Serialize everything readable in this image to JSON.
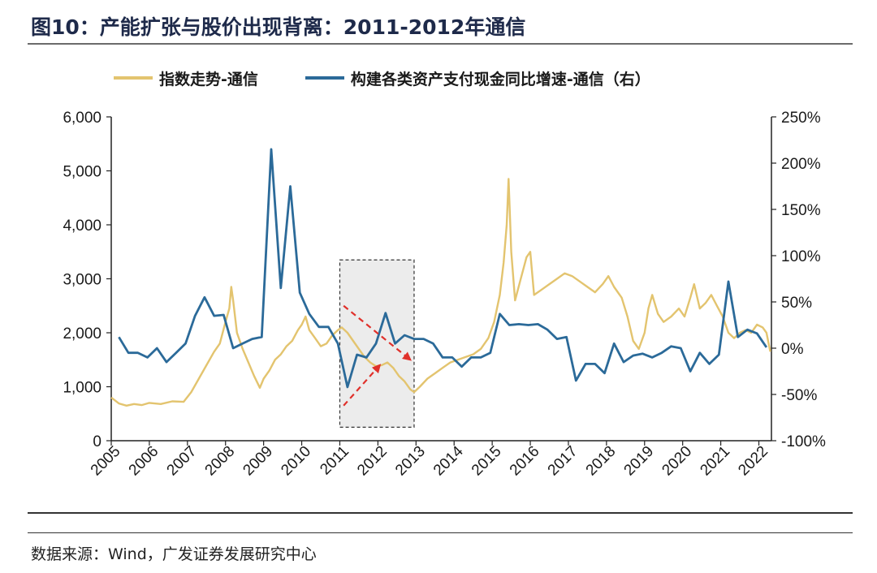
{
  "header": {
    "title": "图10：产能扩张与股价出现背离：2011-2012年通信"
  },
  "footer": {
    "source": "数据来源：Wind，广发证券发展研究中心"
  },
  "colors": {
    "index_line": "#e3c46f",
    "capex_line": "#2b6a99",
    "highlight_fill": "#ececec",
    "arrow": "#e0302a"
  },
  "chart_data": {
    "type": "line",
    "title": "",
    "legend_position": "top",
    "grid": false,
    "x": {
      "ticks": [
        "2005",
        "2006",
        "2007",
        "2008",
        "2009",
        "2010",
        "2011",
        "2012",
        "2013",
        "2014",
        "2015",
        "2016",
        "2017",
        "2018",
        "2019",
        "2020",
        "2021",
        "2022"
      ],
      "range": [
        2005.0,
        2022.33
      ]
    },
    "y_left": {
      "ticks": [
        "0",
        "1,000",
        "2,000",
        "3,000",
        "4,000",
        "5,000",
        "6,000"
      ],
      "range": [
        0,
        6000
      ]
    },
    "y_right": {
      "ticks": [
        "-100%",
        "-50%",
        "0%",
        "50%",
        "100%",
        "150%",
        "200%",
        "250%"
      ],
      "range": [
        -100,
        250
      ],
      "unit": "%"
    },
    "series": [
      {
        "name": "指数走势-通信",
        "axis": "left",
        "points": [
          [
            2005.0,
            800
          ],
          [
            2005.2,
            690
          ],
          [
            2005.4,
            650
          ],
          [
            2005.6,
            680
          ],
          [
            2005.8,
            660
          ],
          [
            2006.0,
            700
          ],
          [
            2006.3,
            680
          ],
          [
            2006.6,
            730
          ],
          [
            2006.9,
            720
          ],
          [
            2007.1,
            900
          ],
          [
            2007.3,
            1150
          ],
          [
            2007.5,
            1400
          ],
          [
            2007.7,
            1650
          ],
          [
            2007.85,
            1800
          ],
          [
            2008.0,
            2200
          ],
          [
            2008.1,
            2450
          ],
          [
            2008.15,
            2850
          ],
          [
            2008.2,
            2600
          ],
          [
            2008.3,
            2000
          ],
          [
            2008.45,
            1700
          ],
          [
            2008.6,
            1450
          ],
          [
            2008.75,
            1200
          ],
          [
            2008.9,
            980
          ],
          [
            2009.0,
            1150
          ],
          [
            2009.15,
            1300
          ],
          [
            2009.3,
            1500
          ],
          [
            2009.45,
            1600
          ],
          [
            2009.6,
            1750
          ],
          [
            2009.75,
            1850
          ],
          [
            2009.9,
            2050
          ],
          [
            2010.0,
            2150
          ],
          [
            2010.1,
            2300
          ],
          [
            2010.2,
            2050
          ],
          [
            2010.35,
            1900
          ],
          [
            2010.5,
            1750
          ],
          [
            2010.65,
            1800
          ],
          [
            2010.8,
            1950
          ],
          [
            2010.95,
            2050
          ],
          [
            2011.05,
            2100
          ],
          [
            2011.2,
            2000
          ],
          [
            2011.35,
            1850
          ],
          [
            2011.5,
            1700
          ],
          [
            2011.65,
            1550
          ],
          [
            2011.8,
            1450
          ],
          [
            2011.95,
            1380
          ],
          [
            2012.1,
            1400
          ],
          [
            2012.25,
            1450
          ],
          [
            2012.4,
            1350
          ],
          [
            2012.55,
            1200
          ],
          [
            2012.7,
            1100
          ],
          [
            2012.85,
            950
          ],
          [
            2012.95,
            900
          ],
          [
            2013.1,
            1000
          ],
          [
            2013.3,
            1150
          ],
          [
            2013.5,
            1250
          ],
          [
            2013.7,
            1350
          ],
          [
            2013.9,
            1450
          ],
          [
            2014.1,
            1500
          ],
          [
            2014.3,
            1550
          ],
          [
            2014.5,
            1600
          ],
          [
            2014.7,
            1700
          ],
          [
            2014.9,
            1900
          ],
          [
            2015.05,
            2200
          ],
          [
            2015.2,
            2700
          ],
          [
            2015.3,
            3300
          ],
          [
            2015.38,
            4000
          ],
          [
            2015.43,
            4850
          ],
          [
            2015.5,
            3500
          ],
          [
            2015.6,
            2600
          ],
          [
            2015.75,
            3000
          ],
          [
            2015.9,
            3400
          ],
          [
            2016.0,
            3500
          ],
          [
            2016.1,
            2700
          ],
          [
            2016.3,
            2800
          ],
          [
            2016.5,
            2900
          ],
          [
            2016.7,
            3000
          ],
          [
            2016.9,
            3100
          ],
          [
            2017.1,
            3050
          ],
          [
            2017.3,
            2950
          ],
          [
            2017.5,
            2850
          ],
          [
            2017.7,
            2750
          ],
          [
            2017.9,
            2900
          ],
          [
            2018.05,
            3050
          ],
          [
            2018.2,
            2850
          ],
          [
            2018.4,
            2650
          ],
          [
            2018.55,
            2300
          ],
          [
            2018.7,
            1850
          ],
          [
            2018.85,
            1700
          ],
          [
            2019.0,
            2000
          ],
          [
            2019.1,
            2450
          ],
          [
            2019.2,
            2700
          ],
          [
            2019.35,
            2350
          ],
          [
            2019.5,
            2200
          ],
          [
            2019.7,
            2300
          ],
          [
            2019.9,
            2450
          ],
          [
            2020.05,
            2300
          ],
          [
            2020.2,
            2650
          ],
          [
            2020.3,
            2900
          ],
          [
            2020.45,
            2450
          ],
          [
            2020.6,
            2550
          ],
          [
            2020.75,
            2700
          ],
          [
            2020.9,
            2500
          ],
          [
            2021.05,
            2300
          ],
          [
            2021.2,
            2000
          ],
          [
            2021.35,
            1900
          ],
          [
            2021.5,
            2000
          ],
          [
            2021.65,
            2050
          ],
          [
            2021.8,
            2000
          ],
          [
            2021.95,
            2150
          ],
          [
            2022.1,
            2100
          ],
          [
            2022.2,
            2000
          ],
          [
            2022.3,
            1650
          ]
        ]
      },
      {
        "name": "构建各类资产支付现金同比增速-通信（右）",
        "axis": "right",
        "points": [
          [
            2005.2,
            12
          ],
          [
            2005.45,
            -5
          ],
          [
            2005.7,
            -5
          ],
          [
            2005.95,
            -10
          ],
          [
            2006.2,
            0
          ],
          [
            2006.45,
            -15
          ],
          [
            2006.7,
            -5
          ],
          [
            2006.95,
            5
          ],
          [
            2007.2,
            35
          ],
          [
            2007.45,
            55
          ],
          [
            2007.7,
            35
          ],
          [
            2007.95,
            36
          ],
          [
            2008.2,
            0
          ],
          [
            2008.45,
            5
          ],
          [
            2008.7,
            10
          ],
          [
            2008.95,
            12
          ],
          [
            2009.2,
            215
          ],
          [
            2009.45,
            65
          ],
          [
            2009.7,
            175
          ],
          [
            2009.95,
            60
          ],
          [
            2010.2,
            37
          ],
          [
            2010.45,
            23
          ],
          [
            2010.7,
            23
          ],
          [
            2010.95,
            5
          ],
          [
            2011.2,
            -42
          ],
          [
            2011.45,
            -7
          ],
          [
            2011.7,
            -10
          ],
          [
            2011.95,
            5
          ],
          [
            2012.2,
            38
          ],
          [
            2012.45,
            5
          ],
          [
            2012.7,
            14
          ],
          [
            2012.95,
            10
          ],
          [
            2013.2,
            10
          ],
          [
            2013.45,
            5
          ],
          [
            2013.7,
            -10
          ],
          [
            2013.95,
            -10
          ],
          [
            2014.2,
            -20
          ],
          [
            2014.45,
            -10
          ],
          [
            2014.7,
            -10
          ],
          [
            2014.95,
            -5
          ],
          [
            2015.2,
            37
          ],
          [
            2015.45,
            25
          ],
          [
            2015.7,
            26
          ],
          [
            2015.95,
            25
          ],
          [
            2016.2,
            26
          ],
          [
            2016.45,
            20
          ],
          [
            2016.7,
            10
          ],
          [
            2016.95,
            12
          ],
          [
            2017.2,
            -35
          ],
          [
            2017.45,
            -17
          ],
          [
            2017.7,
            -17
          ],
          [
            2017.95,
            -27
          ],
          [
            2018.2,
            5
          ],
          [
            2018.45,
            -15
          ],
          [
            2018.7,
            -8
          ],
          [
            2018.95,
            -6
          ],
          [
            2019.2,
            -10
          ],
          [
            2019.45,
            -5
          ],
          [
            2019.7,
            2
          ],
          [
            2019.95,
            0
          ],
          [
            2020.2,
            -25
          ],
          [
            2020.45,
            -5
          ],
          [
            2020.7,
            -17
          ],
          [
            2020.95,
            -7
          ],
          [
            2021.2,
            72
          ],
          [
            2021.45,
            12
          ],
          [
            2021.7,
            20
          ],
          [
            2021.95,
            16
          ],
          [
            2022.2,
            1
          ]
        ]
      }
    ],
    "annotations": [
      {
        "type": "highlight_box",
        "x_range": [
          2011.0,
          2012.95
        ],
        "y_range_left": [
          250,
          3350
        ]
      },
      {
        "type": "arrow",
        "from": [
          2011.1,
          2500
        ],
        "to": [
          2012.85,
          1500
        ]
      },
      {
        "type": "arrow",
        "from": [
          2011.1,
          650
        ],
        "to": [
          2012.05,
          1400
        ]
      }
    ]
  }
}
